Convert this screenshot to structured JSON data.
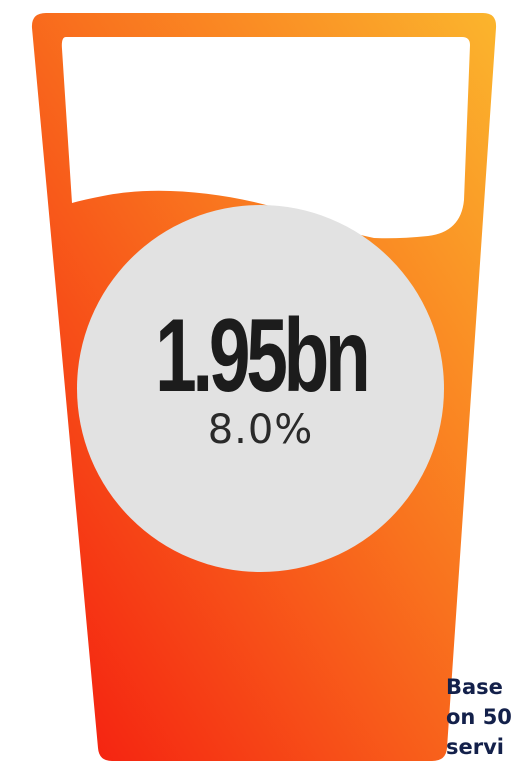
{
  "stat": {
    "value": "1.95bn",
    "percent": "8.0%"
  },
  "footnote": {
    "lines": [
      "Base",
      "on 50",
      "servi"
    ]
  },
  "colors": {
    "glass_top": "#fbb52d",
    "glass_mid": "#f9721e",
    "glass_bottom": "#f4190f",
    "circle": "#e2e2e2",
    "text_dark": "#1c1c1c",
    "footnote_text": "#13204a"
  },
  "icons": {
    "glass": "drinking-glass-icon"
  }
}
